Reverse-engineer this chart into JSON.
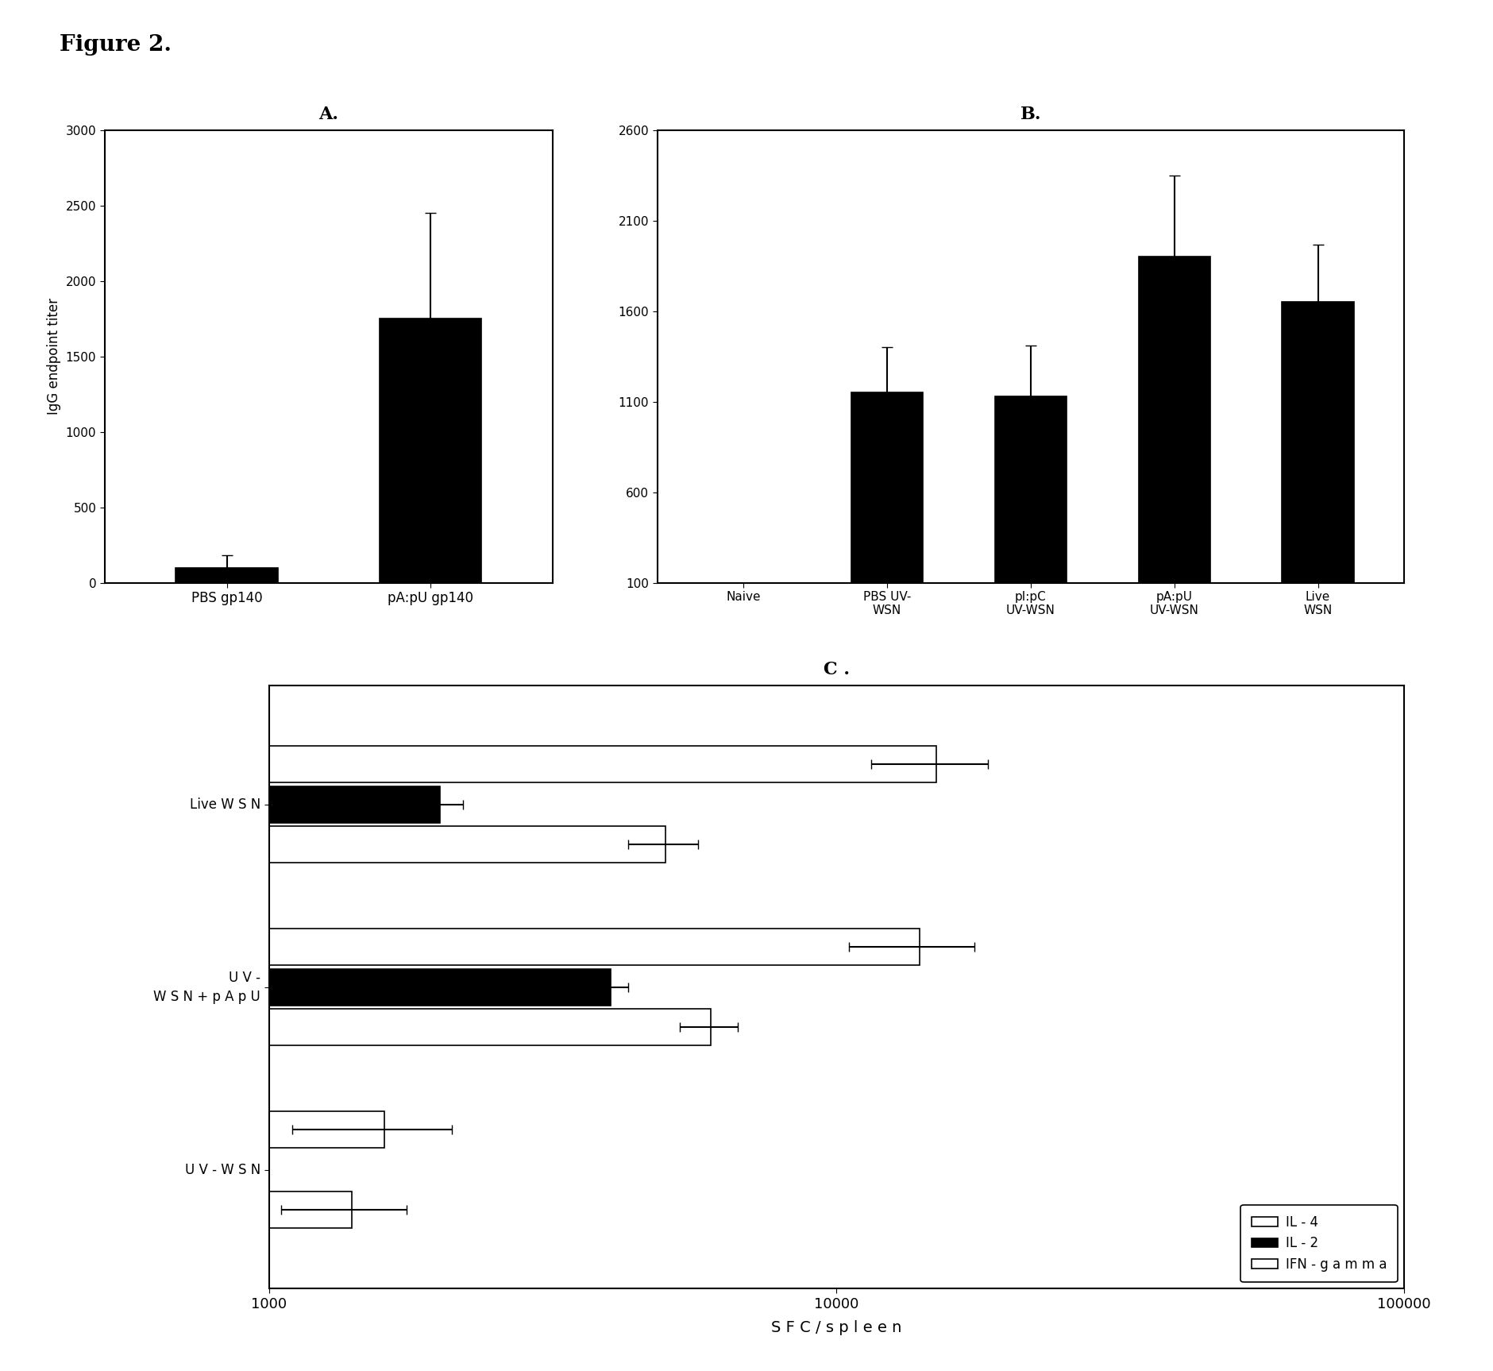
{
  "figure_title": "Figure 2.",
  "panel_A": {
    "label": "A.",
    "categories": [
      "PBS gp140",
      "pA:pU gp140"
    ],
    "values": [
      100,
      1750
    ],
    "errors": [
      80,
      700
    ],
    "ylabel": "IgG endpoint titer",
    "yticks": [
      0,
      500,
      1000,
      1500,
      2000,
      2500,
      3000
    ],
    "ylim": [
      0,
      3000
    ],
    "bar_color": "#000000",
    "bar_width": 0.5
  },
  "panel_B": {
    "label": "B.",
    "categories": [
      "Naive",
      "PBS UV-\nWSN",
      "pI:pC\nUV-WSN",
      "pA:pU\nUV-WSN",
      "Live\nWSN"
    ],
    "values": [
      0,
      1150,
      1130,
      1900,
      1650
    ],
    "errors": [
      0,
      250,
      280,
      450,
      320
    ],
    "yticks": [
      100,
      600,
      1100,
      1600,
      2100,
      2600
    ],
    "ylim": [
      100,
      2600
    ],
    "bar_color": "#000000",
    "bar_width": 0.5
  },
  "panel_C": {
    "label": "C .",
    "groups": [
      "Live W S N",
      "U V -\nW S N + p A p U",
      "U V - W S N"
    ],
    "IL4_values": [
      15000,
      14000,
      1600
    ],
    "IL4_errors": [
      3500,
      3500,
      500
    ],
    "IL2_values": [
      2000,
      4000,
      0
    ],
    "IL2_errors": [
      200,
      300,
      0
    ],
    "IFNg_values": [
      5000,
      6000,
      1400
    ],
    "IFNg_errors": [
      700,
      700,
      350
    ],
    "xlabel": "S F C / s p l e e n",
    "xlim": [
      1000,
      100000
    ],
    "xticks": [
      1000,
      10000,
      100000
    ],
    "xtick_labels": [
      "1000",
      "10000",
      "100000"
    ],
    "legend_labels": [
      "IL - 4",
      "IL - 2",
      "IFN - g a m m a"
    ]
  },
  "bg_color": "#ffffff"
}
